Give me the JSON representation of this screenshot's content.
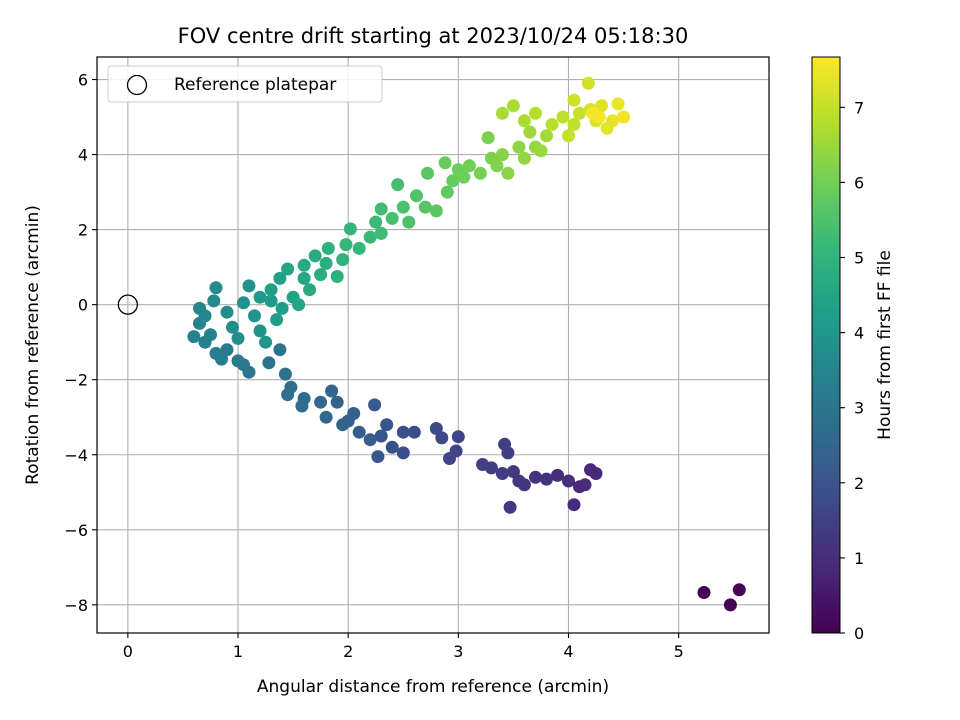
{
  "chart_data": {
    "type": "scatter",
    "title": "FOV centre drift starting at 2023/10/24 05:18:30",
    "xlabel": "Angular distance from reference (arcmin)",
    "ylabel": "Rotation from reference (arcmin)",
    "xlim": [
      -0.28,
      5.82
    ],
    "ylim": [
      -8.75,
      6.6
    ],
    "xticks": [
      0,
      1,
      2,
      3,
      4,
      5
    ],
    "xtick_labels": [
      "0",
      "1",
      "2",
      "3",
      "4",
      "5"
    ],
    "yticks": [
      -8,
      -6,
      -4,
      -2,
      0,
      2,
      4,
      6
    ],
    "ytick_labels": [
      "−8",
      "−6",
      "−4",
      "−2",
      "0",
      "2",
      "4",
      "6"
    ],
    "grid": true,
    "legend": {
      "position": "top-left",
      "entries": [
        {
          "label": "Reference platepar",
          "marker": "open-circle"
        }
      ]
    },
    "reference_point": {
      "x": 0,
      "y": 0
    },
    "colorbar": {
      "label": "Hours from first FF file",
      "min": 0,
      "max": 7.67,
      "ticks": [
        0,
        1,
        2,
        3,
        4,
        5,
        6,
        7
      ],
      "tick_labels": [
        "0",
        "1",
        "2",
        "3",
        "4",
        "5",
        "6",
        "7"
      ],
      "colormap": "viridis"
    },
    "colormap_stops": [
      "#440154",
      "#482878",
      "#3e4989",
      "#31688e",
      "#26828e",
      "#1f9e89",
      "#35b779",
      "#6ece58",
      "#b5de2b",
      "#fde725"
    ],
    "points_xyt": [
      [
        5.23,
        -7.67,
        0.02
      ],
      [
        5.47,
        -8.0,
        0.05
      ],
      [
        5.55,
        -7.6,
        0.08
      ],
      [
        4.2,
        -4.4,
        0.85
      ],
      [
        4.25,
        -4.5,
        0.88
      ],
      [
        4.1,
        -4.85,
        0.9
      ],
      [
        4.05,
        -5.33,
        0.93
      ],
      [
        4.15,
        -4.8,
        0.96
      ],
      [
        4.0,
        -4.7,
        1.0
      ],
      [
        3.9,
        -4.55,
        1.05
      ],
      [
        3.8,
        -4.65,
        1.1
      ],
      [
        3.7,
        -4.6,
        1.14
      ],
      [
        3.6,
        -4.8,
        1.18
      ],
      [
        3.55,
        -4.7,
        1.22
      ],
      [
        3.47,
        -5.4,
        1.26
      ],
      [
        3.5,
        -4.45,
        1.3
      ],
      [
        3.4,
        -4.5,
        1.34
      ],
      [
        3.3,
        -4.35,
        1.38
      ],
      [
        3.45,
        -3.95,
        1.42
      ],
      [
        3.42,
        -3.72,
        1.46
      ],
      [
        3.22,
        -4.26,
        1.5
      ],
      [
        3.0,
        -3.52,
        1.55
      ],
      [
        2.98,
        -3.9,
        1.6
      ],
      [
        2.92,
        -4.1,
        1.65
      ],
      [
        2.85,
        -3.55,
        1.7
      ],
      [
        2.8,
        -3.3,
        1.75
      ],
      [
        2.6,
        -3.4,
        1.8
      ],
      [
        2.5,
        -3.95,
        1.85
      ],
      [
        2.5,
        -3.4,
        1.9
      ],
      [
        2.4,
        -3.8,
        1.95
      ],
      [
        2.3,
        -3.5,
        2.0
      ],
      [
        2.35,
        -3.2,
        2.05
      ],
      [
        2.27,
        -4.05,
        2.1
      ],
      [
        2.24,
        -2.67,
        2.15
      ],
      [
        2.2,
        -3.6,
        2.2
      ],
      [
        2.1,
        -3.4,
        2.25
      ],
      [
        2.0,
        -3.1,
        2.3
      ],
      [
        2.05,
        -2.9,
        2.35
      ],
      [
        1.95,
        -3.2,
        2.4
      ],
      [
        1.9,
        -2.6,
        2.45
      ],
      [
        1.85,
        -2.3,
        2.5
      ],
      [
        1.8,
        -3.0,
        2.55
      ],
      [
        1.75,
        -2.6,
        2.6
      ],
      [
        1.6,
        -2.5,
        2.65
      ],
      [
        1.58,
        -2.7,
        2.7
      ],
      [
        1.48,
        -2.2,
        2.75
      ],
      [
        1.45,
        -2.4,
        2.8
      ],
      [
        1.43,
        -1.85,
        2.85
      ],
      [
        1.28,
        -1.55,
        2.9
      ],
      [
        1.38,
        -1.2,
        2.95
      ],
      [
        1.1,
        -1.8,
        3.0
      ],
      [
        1.05,
        -1.6,
        3.05
      ],
      [
        1.0,
        -1.5,
        3.1
      ],
      [
        0.9,
        -1.2,
        3.15
      ],
      [
        0.85,
        -1.45,
        3.2
      ],
      [
        0.8,
        -1.3,
        3.25
      ],
      [
        0.7,
        -1.0,
        3.3
      ],
      [
        0.75,
        -0.8,
        3.35
      ],
      [
        0.65,
        -0.5,
        3.4
      ],
      [
        0.6,
        -0.85,
        3.45
      ],
      [
        0.65,
        -0.1,
        3.5
      ],
      [
        0.7,
        -0.3,
        3.55
      ],
      [
        0.78,
        0.1,
        3.6
      ],
      [
        0.8,
        0.45,
        3.65
      ],
      [
        0.9,
        -0.2,
        3.7
      ],
      [
        0.95,
        -0.6,
        3.75
      ],
      [
        1.0,
        -0.9,
        3.8
      ],
      [
        1.05,
        0.05,
        3.85
      ],
      [
        1.1,
        0.5,
        3.9
      ],
      [
        1.15,
        -0.3,
        3.95
      ],
      [
        1.2,
        -0.7,
        4.0
      ],
      [
        1.25,
        -1.0,
        4.05
      ],
      [
        1.2,
        0.2,
        4.1
      ],
      [
        1.3,
        0.1,
        4.15
      ],
      [
        1.35,
        -0.4,
        4.2
      ],
      [
        1.4,
        -0.1,
        4.25
      ],
      [
        1.3,
        0.4,
        4.3
      ],
      [
        1.38,
        0.7,
        4.35
      ],
      [
        1.5,
        0.2,
        4.4
      ],
      [
        1.55,
        0.0,
        4.45
      ],
      [
        1.45,
        0.95,
        4.5
      ],
      [
        1.6,
        0.7,
        4.55
      ],
      [
        1.6,
        1.05,
        4.6
      ],
      [
        1.65,
        0.4,
        4.65
      ],
      [
        1.7,
        1.3,
        4.7
      ],
      [
        1.75,
        0.8,
        4.75
      ],
      [
        1.8,
        1.1,
        4.8
      ],
      [
        1.82,
        1.5,
        4.85
      ],
      [
        1.9,
        0.75,
        4.9
      ],
      [
        1.95,
        1.2,
        4.95
      ],
      [
        1.98,
        1.6,
        5.0
      ],
      [
        2.02,
        2.02,
        5.05
      ],
      [
        2.1,
        1.5,
        5.1
      ],
      [
        2.2,
        1.8,
        5.15
      ],
      [
        2.25,
        2.2,
        5.2
      ],
      [
        2.3,
        1.9,
        5.25
      ],
      [
        2.3,
        2.55,
        5.3
      ],
      [
        2.45,
        3.2,
        5.35
      ],
      [
        2.4,
        2.3,
        5.4
      ],
      [
        2.5,
        2.6,
        5.45
      ],
      [
        2.55,
        2.2,
        5.5
      ],
      [
        2.62,
        2.9,
        5.55
      ],
      [
        2.7,
        2.6,
        5.6
      ],
      [
        2.72,
        3.5,
        5.65
      ],
      [
        2.8,
        2.5,
        5.7
      ],
      [
        2.9,
        3.0,
        5.75
      ],
      [
        2.95,
        3.3,
        5.8
      ],
      [
        2.88,
        3.78,
        5.85
      ],
      [
        3.0,
        3.6,
        5.9
      ],
      [
        3.05,
        3.4,
        5.95
      ],
      [
        3.1,
        3.7,
        6.0
      ],
      [
        3.2,
        3.5,
        6.05
      ],
      [
        3.27,
        4.45,
        6.1
      ],
      [
        3.3,
        3.9,
        6.15
      ],
      [
        3.35,
        3.7,
        6.2
      ],
      [
        3.4,
        4.0,
        6.25
      ],
      [
        3.45,
        3.5,
        6.3
      ],
      [
        3.55,
        4.2,
        6.35
      ],
      [
        3.6,
        3.9,
        6.4
      ],
      [
        3.7,
        4.2,
        6.45
      ],
      [
        3.75,
        4.1,
        6.5
      ],
      [
        3.65,
        4.6,
        6.55
      ],
      [
        3.8,
        4.5,
        6.6
      ],
      [
        3.4,
        5.1,
        6.65
      ],
      [
        3.5,
        5.3,
        6.7
      ],
      [
        3.6,
        4.9,
        6.75
      ],
      [
        3.7,
        5.1,
        6.8
      ],
      [
        3.85,
        4.8,
        6.85
      ],
      [
        3.95,
        5.0,
        6.9
      ],
      [
        4.05,
        4.8,
        6.95
      ],
      [
        4.0,
        4.5,
        7.0
      ],
      [
        4.1,
        5.1,
        7.05
      ],
      [
        4.05,
        5.45,
        7.1
      ],
      [
        4.18,
        5.9,
        7.15
      ],
      [
        4.2,
        5.2,
        7.2
      ],
      [
        4.25,
        4.9,
        7.25
      ],
      [
        4.3,
        5.3,
        7.3
      ],
      [
        4.35,
        4.7,
        7.35
      ],
      [
        4.4,
        4.9,
        7.4
      ],
      [
        4.45,
        5.35,
        7.45
      ],
      [
        4.5,
        5.0,
        7.5
      ],
      [
        4.28,
        5.0,
        7.55
      ],
      [
        4.22,
        5.1,
        7.6
      ]
    ]
  }
}
